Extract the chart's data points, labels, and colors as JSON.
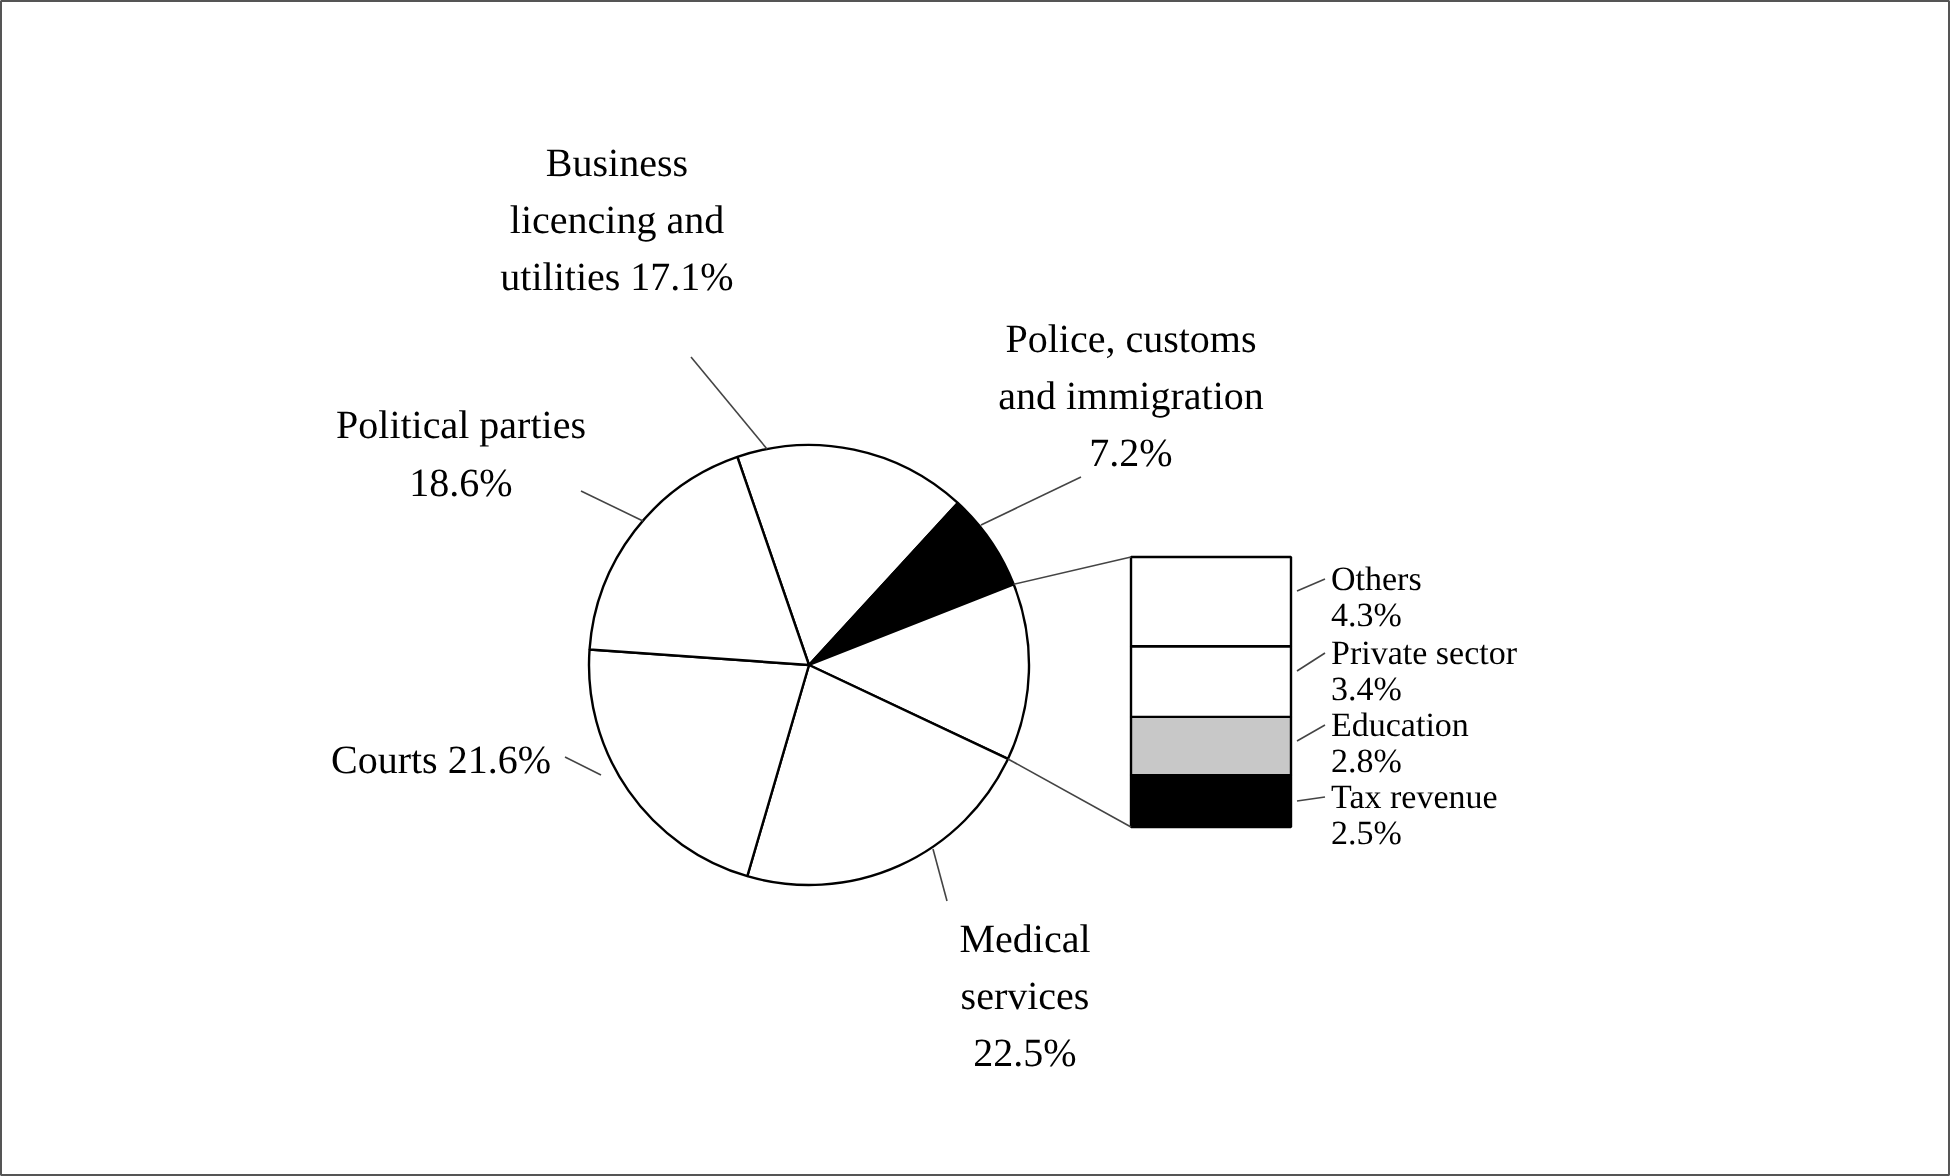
{
  "chart_data": [
    {
      "type": "pie",
      "categories": [
        "Business licencing and utilities",
        "Police, customs and immigration",
        null,
        "Medical services",
        "Courts",
        "Political parties"
      ],
      "values": [
        17.1,
        7.2,
        13.0,
        22.5,
        21.6,
        18.6
      ],
      "colors": [
        "#ffffff",
        "#000000",
        "#ffffff",
        "#ffffff",
        "#ffffff",
        "#ffffff"
      ],
      "value_labels": [
        "17.1%",
        "7.2%",
        null,
        "22.5%",
        "21.6%",
        "18.6%"
      ]
    },
    {
      "type": "bar",
      "stacked": true,
      "categories": [
        null
      ],
      "series": [
        {
          "name": "Tax revenue",
          "color": "#000000",
          "values": [
            2.5
          ],
          "value_labels": [
            "2.5%"
          ]
        },
        {
          "name": "Education",
          "color": "#c8c8c8",
          "values": [
            2.8
          ],
          "value_labels": [
            "2.8%"
          ]
        },
        {
          "name": "Private sector",
          "color": "#ffffff",
          "values": [
            3.4
          ],
          "value_labels": [
            "3.4%"
          ]
        },
        {
          "name": "Others",
          "color": "#ffffff",
          "values": [
            4.3
          ],
          "value_labels": [
            "4.3%"
          ]
        }
      ]
    }
  ]
}
